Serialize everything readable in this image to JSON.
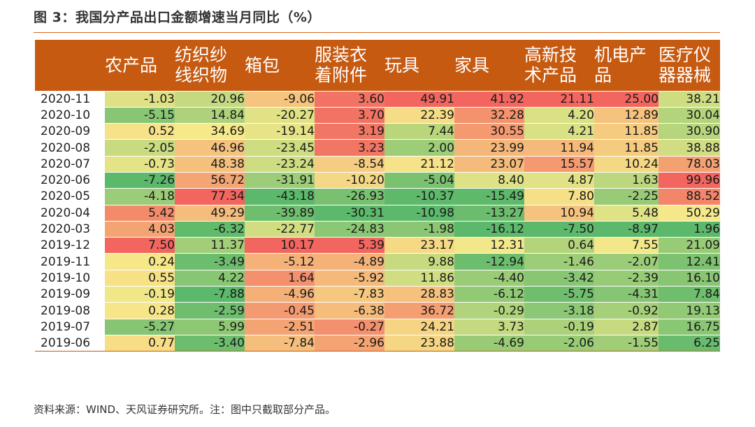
{
  "title": "图 3：我国分产品出口金额增速当月同比（%）",
  "source": "资料来源：WIND、天风证券研究所。注：图中只截取部分产品。",
  "colors": {
    "header_bg": "#c65a11",
    "rule": "#d76a24",
    "low": "#5cb86a",
    "mid": "#f6e98a",
    "high": "#f2665f"
  },
  "chart_data": {
    "type": "table",
    "title": "图 3：我国分产品出口金额增速当月同比（%）",
    "columns": [
      "农产品",
      "纺织纱线织物",
      "箱包",
      "服装衣着附件",
      "玩具",
      "家具",
      "高新技术产品",
      "机电产品",
      "医疗仪器器械"
    ],
    "rows": [
      {
        "label": "2020-11",
        "values": [
          "-1.03",
          "20.96",
          "-9.06",
          "3.60",
          "49.91",
          "41.92",
          "21.11",
          "25.00",
          "38.21"
        ]
      },
      {
        "label": "2020-10",
        "values": [
          "-5.15",
          "14.84",
          "-20.27",
          "3.70",
          "22.39",
          "32.28",
          "4.20",
          "12.89",
          "30.04"
        ]
      },
      {
        "label": "2020-09",
        "values": [
          "0.52",
          "34.69",
          "-19.14",
          "3.19",
          "7.44",
          "30.55",
          "4.21",
          "11.85",
          "30.90"
        ]
      },
      {
        "label": "2020-08",
        "values": [
          "-2.05",
          "46.96",
          "-23.45",
          "3.23",
          "2.00",
          "23.99",
          "11.94",
          "11.85",
          "38.88"
        ]
      },
      {
        "label": "2020-07",
        "values": [
          "-0.73",
          "48.38",
          "-23.24",
          "-8.54",
          "21.12",
          "23.07",
          "15.57",
          "10.24",
          "78.03"
        ]
      },
      {
        "label": "2020-06",
        "values": [
          "-7.26",
          "56.72",
          "-31.91",
          "-10.20",
          "-5.04",
          "8.40",
          "4.87",
          "1.63",
          "99.96"
        ]
      },
      {
        "label": "2020-05",
        "values": [
          "-4.18",
          "77.34",
          "-43.18",
          "-26.93",
          "-10.37",
          "-15.49",
          "7.80",
          "-2.25",
          "88.52"
        ]
      },
      {
        "label": "2020-04",
        "values": [
          "5.42",
          "49.29",
          "-39.89",
          "-30.31",
          "-10.98",
          "-13.27",
          "10.94",
          "5.48",
          "50.29"
        ]
      },
      {
        "label": "2020-03",
        "values": [
          "4.03",
          "-6.32",
          "-22.77",
          "-24.83",
          "-1.98",
          "-16.12",
          "-7.50",
          "-8.97",
          "1.96"
        ]
      },
      {
        "label": "2019-12",
        "values": [
          "7.50",
          "11.37",
          "10.17",
          "5.39",
          "23.17",
          "12.31",
          "0.64",
          "7.55",
          "21.09"
        ]
      },
      {
        "label": "2019-11",
        "values": [
          "0.24",
          "-3.49",
          "-5.12",
          "-4.89",
          "9.88",
          "-12.94",
          "-1.46",
          "-2.07",
          "12.41"
        ]
      },
      {
        "label": "2019-10",
        "values": [
          "0.55",
          "4.22",
          "1.64",
          "-5.92",
          "11.86",
          "-4.40",
          "-3.42",
          "-2.39",
          "16.10"
        ]
      },
      {
        "label": "2019-09",
        "values": [
          "-0.19",
          "-7.88",
          "-4.96",
          "-7.83",
          "28.83",
          "-6.12",
          "-5.75",
          "-4.31",
          "7.84"
        ]
      },
      {
        "label": "2019-08",
        "values": [
          "0.28",
          "-2.59",
          "-0.45",
          "-6.38",
          "36.72",
          "-0.29",
          "-3.18",
          "-0.92",
          "19.13"
        ]
      },
      {
        "label": "2019-07",
        "values": [
          "-5.27",
          "5.99",
          "-2.51",
          "-0.27",
          "24.21",
          "3.73",
          "-0.19",
          "2.87",
          "16.75"
        ]
      },
      {
        "label": "2019-06",
        "values": [
          "0.77",
          "-3.40",
          "-7.84",
          "-2.96",
          "23.88",
          "-4.69",
          "-2.06",
          "-1.55",
          "6.25"
        ]
      }
    ],
    "color_scale": "per-column green (low) - yellow (mid) - red (high)"
  }
}
